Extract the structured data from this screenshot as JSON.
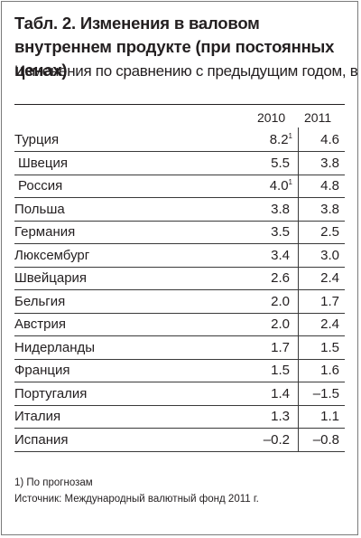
{
  "title": "Табл. 2. Изменения в валовом внутреннем продукте (при постоянных ценах)",
  "subtitle": "Изменения по сравнению с предыдущим годом, в  %",
  "columns": [
    "2010",
    "2011"
  ],
  "rows": [
    {
      "country": "Турция",
      "y2010": "8.2",
      "y2010_note": "1",
      "y2011": "4.6",
      "indent": false
    },
    {
      "country": "Швеция",
      "y2010": "5.5",
      "y2010_note": "",
      "y2011": "3.8",
      "indent": true
    },
    {
      "country": "Россия",
      "y2010": "4.0",
      "y2010_note": "1",
      "y2011": "4.8",
      "indent": true
    },
    {
      "country": "Польша",
      "y2010": "3.8",
      "y2010_note": "",
      "y2011": "3.8",
      "indent": false
    },
    {
      "country": "Германия",
      "y2010": "3.5",
      "y2010_note": "",
      "y2011": "2.5",
      "indent": false
    },
    {
      "country": "Люксембург",
      "y2010": "3.4",
      "y2010_note": "",
      "y2011": "3.0",
      "indent": false
    },
    {
      "country": "Швейцария",
      "y2010": "2.6",
      "y2010_note": "",
      "y2011": "2.4",
      "indent": false
    },
    {
      "country": "Бельгия",
      "y2010": "2.0",
      "y2010_note": "",
      "y2011": "1.7",
      "indent": false
    },
    {
      "country": "Австрия",
      "y2010": "2.0",
      "y2010_note": "",
      "y2011": "2.4",
      "indent": false
    },
    {
      "country": "Нидерланды",
      "y2010": "1.7",
      "y2010_note": "",
      "y2011": "1.5",
      "indent": false
    },
    {
      "country": "Франция",
      "y2010": "1.5",
      "y2010_note": "",
      "y2011": "1.6",
      "indent": false
    },
    {
      "country": "Португалия",
      "y2010": "1.4",
      "y2010_note": "",
      "y2011": "–1.5",
      "indent": false
    },
    {
      "country": "Италия",
      "y2010": "1.3",
      "y2010_note": "",
      "y2011": "1.1",
      "indent": false
    },
    {
      "country": "Испания",
      "y2010": "–0.2",
      "y2010_note": "",
      "y2011": "–0.8",
      "indent": false
    }
  ],
  "footnote": "1) По прогнозам",
  "source": "Источник: Международный валютный фонд 2011 г."
}
